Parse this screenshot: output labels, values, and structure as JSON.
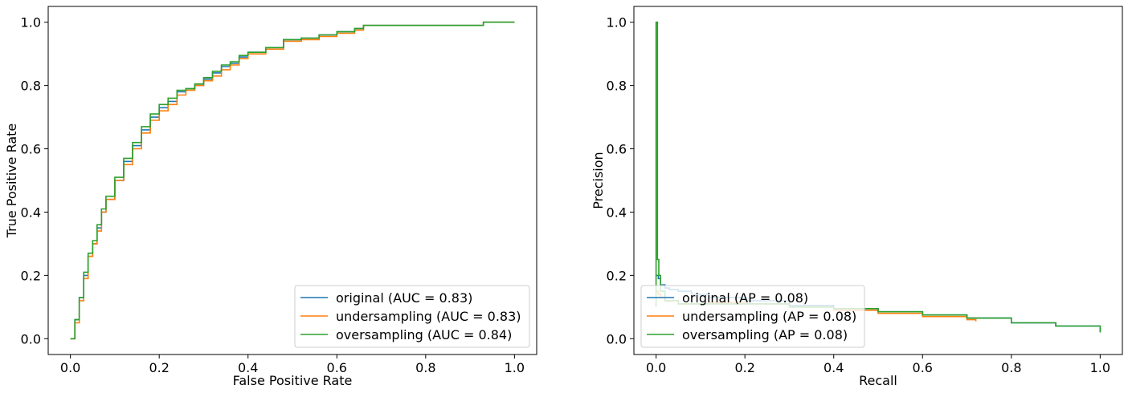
{
  "chart_data": [
    {
      "type": "line",
      "subtype": "roc-curve",
      "title": "",
      "xlabel": "False Positive Rate",
      "ylabel": "True Positive Rate",
      "xlim": [
        -0.05,
        1.05
      ],
      "ylim": [
        -0.05,
        1.05
      ],
      "xticks": [
        0.0,
        0.2,
        0.4,
        0.6,
        0.8,
        1.0
      ],
      "xtick_labels": [
        "0.0",
        "0.2",
        "0.4",
        "0.6",
        "0.8",
        "1.0"
      ],
      "yticks": [
        0.0,
        0.2,
        0.4,
        0.6,
        0.8,
        1.0
      ],
      "ytick_labels": [
        "0.0",
        "0.2",
        "0.4",
        "0.6",
        "0.8",
        "1.0"
      ],
      "grid": false,
      "legend_position": "lower-right",
      "series": [
        {
          "name": "original (AUC = 0.83)",
          "color": "#1f77b4",
          "x": [
            0.0,
            0.01,
            0.02,
            0.03,
            0.04,
            0.05,
            0.06,
            0.07,
            0.08,
            0.1,
            0.12,
            0.14,
            0.16,
            0.18,
            0.2,
            0.22,
            0.24,
            0.26,
            0.28,
            0.3,
            0.32,
            0.34,
            0.36,
            0.38,
            0.4,
            0.44,
            0.48,
            0.52,
            0.56,
            0.6,
            0.64,
            0.66,
            0.7,
            0.8,
            0.9,
            0.93,
            1.0
          ],
          "y": [
            0.0,
            0.06,
            0.13,
            0.2,
            0.26,
            0.3,
            0.35,
            0.4,
            0.44,
            0.5,
            0.56,
            0.61,
            0.66,
            0.7,
            0.73,
            0.75,
            0.78,
            0.79,
            0.8,
            0.82,
            0.84,
            0.86,
            0.87,
            0.89,
            0.905,
            0.92,
            0.945,
            0.95,
            0.96,
            0.97,
            0.98,
            0.99,
            0.99,
            0.99,
            0.99,
            1.0,
            1.0
          ]
        },
        {
          "name": "undersampling (AUC = 0.83)",
          "color": "#ff7f0e",
          "x": [
            0.0,
            0.01,
            0.02,
            0.03,
            0.04,
            0.05,
            0.06,
            0.07,
            0.08,
            0.1,
            0.12,
            0.14,
            0.16,
            0.18,
            0.2,
            0.22,
            0.24,
            0.26,
            0.28,
            0.3,
            0.32,
            0.34,
            0.36,
            0.38,
            0.4,
            0.44,
            0.48,
            0.52,
            0.56,
            0.6,
            0.64,
            0.66,
            0.7,
            0.8,
            0.9,
            0.93,
            1.0
          ],
          "y": [
            0.0,
            0.05,
            0.12,
            0.19,
            0.26,
            0.3,
            0.34,
            0.4,
            0.44,
            0.5,
            0.55,
            0.6,
            0.65,
            0.69,
            0.72,
            0.74,
            0.77,
            0.785,
            0.8,
            0.815,
            0.83,
            0.85,
            0.865,
            0.885,
            0.9,
            0.915,
            0.94,
            0.945,
            0.955,
            0.965,
            0.975,
            0.99,
            0.99,
            0.99,
            0.99,
            1.0,
            1.0
          ]
        },
        {
          "name": "oversampling (AUC = 0.84)",
          "color": "#2ca02c",
          "x": [
            0.0,
            0.01,
            0.02,
            0.03,
            0.04,
            0.05,
            0.06,
            0.07,
            0.08,
            0.1,
            0.12,
            0.14,
            0.16,
            0.18,
            0.2,
            0.22,
            0.24,
            0.26,
            0.28,
            0.3,
            0.32,
            0.34,
            0.36,
            0.38,
            0.4,
            0.44,
            0.48,
            0.52,
            0.56,
            0.6,
            0.64,
            0.66,
            0.7,
            0.8,
            0.9,
            0.93,
            1.0
          ],
          "y": [
            0.0,
            0.06,
            0.13,
            0.21,
            0.27,
            0.31,
            0.36,
            0.41,
            0.45,
            0.51,
            0.57,
            0.62,
            0.67,
            0.71,
            0.74,
            0.76,
            0.785,
            0.79,
            0.805,
            0.825,
            0.845,
            0.865,
            0.875,
            0.895,
            0.905,
            0.92,
            0.945,
            0.95,
            0.96,
            0.97,
            0.98,
            0.99,
            0.99,
            0.99,
            0.99,
            1.0,
            1.0
          ]
        }
      ]
    },
    {
      "type": "line",
      "subtype": "precision-recall-curve",
      "title": "",
      "xlabel": "Recall",
      "ylabel": "Precision",
      "xlim": [
        -0.05,
        1.05
      ],
      "ylim": [
        -0.05,
        1.05
      ],
      "xticks": [
        0.0,
        0.2,
        0.4,
        0.6,
        0.8,
        1.0
      ],
      "xtick_labels": [
        "0.0",
        "0.2",
        "0.4",
        "0.6",
        "0.8",
        "1.0"
      ],
      "yticks": [
        0.0,
        0.2,
        0.4,
        0.6,
        0.8,
        1.0
      ],
      "ytick_labels": [
        "0.0",
        "0.2",
        "0.4",
        "0.6",
        "0.8",
        "1.0"
      ],
      "grid": false,
      "legend_position": "lower-left",
      "series": [
        {
          "name": "original (AP = 0.08)",
          "color": "#1f77b4",
          "x": [
            0.0,
            0.005,
            0.01,
            0.02,
            0.03,
            0.05,
            0.08,
            0.12,
            0.2,
            0.3,
            0.4,
            0.5,
            0.6,
            0.7,
            0.8,
            0.9,
            1.0
          ],
          "y": [
            0.2,
            0.19,
            0.17,
            0.16,
            0.155,
            0.15,
            0.14,
            0.13,
            0.12,
            0.105,
            0.095,
            0.085,
            0.075,
            0.065,
            0.05,
            0.04,
            0.02
          ]
        },
        {
          "name": "undersampling (AP = 0.08)",
          "color": "#ff7f0e",
          "x": [
            0.0,
            0.005,
            0.01,
            0.02,
            0.05,
            0.08,
            0.12,
            0.2,
            0.3,
            0.4,
            0.5,
            0.6,
            0.7,
            0.72
          ],
          "y": [
            0.15,
            0.14,
            0.13,
            0.12,
            0.11,
            0.11,
            0.115,
            0.11,
            0.1,
            0.09,
            0.08,
            0.07,
            0.06,
            0.055
          ]
        },
        {
          "name": "oversampling (AP = 0.08)",
          "color": "#2ca02c",
          "x": [
            0.0,
            0.0,
            0.003,
            0.006,
            0.01,
            0.02,
            0.05,
            0.08,
            0.12,
            0.2,
            0.3,
            0.4,
            0.5,
            0.6,
            0.7,
            0.8,
            0.9,
            1.0
          ],
          "y": [
            0.1,
            1.0,
            0.25,
            0.2,
            0.15,
            0.12,
            0.11,
            0.11,
            0.11,
            0.11,
            0.1,
            0.095,
            0.085,
            0.075,
            0.065,
            0.05,
            0.04,
            0.02
          ]
        }
      ]
    }
  ]
}
